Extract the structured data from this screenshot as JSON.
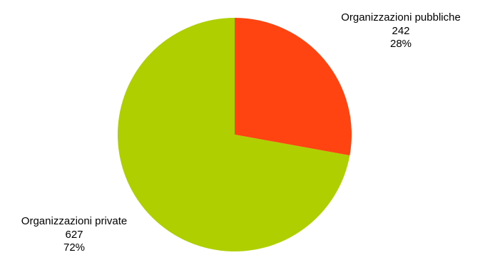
{
  "chart_data": {
    "type": "pie",
    "start_angle_deg": 0,
    "direction": "clockwise",
    "slices": [
      {
        "label": "Organizzazioni pubbliche",
        "value": 242,
        "value_text": "242",
        "percent_text": "28%",
        "color": "#ff4411"
      },
      {
        "label": "Organizzazioni private",
        "value": 627,
        "value_text": "627",
        "percent_text": "72%",
        "color": "#b0cf00"
      }
    ]
  }
}
